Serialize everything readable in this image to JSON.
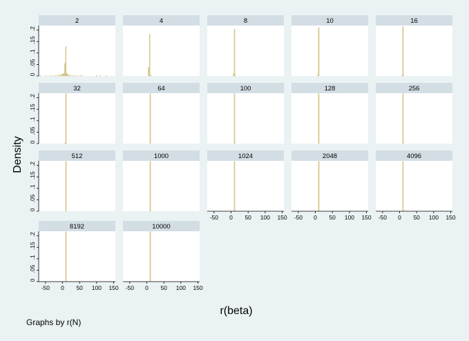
{
  "figure": {
    "ylabel": "Density",
    "xlabel": "r(beta)",
    "note": "Graphs by r(N)"
  },
  "colors": {
    "background": "#eaf2f3",
    "panel": "#ffffff",
    "strip": "#d3dee4",
    "bar": "#d8c98e",
    "bar_edge": "#c9b874",
    "axis": "#000000"
  },
  "chart_data": {
    "type": "bar",
    "subtype": "histogram-by-group",
    "xlabel": "r(beta)",
    "ylabel": "Density",
    "xlim": [
      -70,
      155
    ],
    "ylim": [
      0,
      0.22
    ],
    "xticks": [
      -50,
      0,
      50,
      100,
      150
    ],
    "xtick_labels": [
      "-50",
      "0",
      "50",
      "100",
      "150"
    ],
    "yticks": [
      0,
      0.05,
      0.1,
      0.15,
      0.2
    ],
    "ytick_labels": [
      "0",
      ".05",
      ".1",
      ".15",
      ".2"
    ],
    "grid": false,
    "bin_width": 2.3,
    "group_label": "Graphs by r(N)",
    "panels": [
      {
        "title": "2",
        "bins": [
          {
            "x": -66,
            "y": 0.002
          },
          {
            "x": -48,
            "y": 0.002
          },
          {
            "x": -36,
            "y": 0.002
          },
          {
            "x": -28,
            "y": 0.003
          },
          {
            "x": -20,
            "y": 0.003
          },
          {
            "x": -14,
            "y": 0.004
          },
          {
            "x": -9,
            "y": 0.004
          },
          {
            "x": -5,
            "y": 0.005
          },
          {
            "x": -2,
            "y": 0.007
          },
          {
            "x": 1,
            "y": 0.009
          },
          {
            "x": 4,
            "y": 0.012
          },
          {
            "x": 7,
            "y": 0.055
          },
          {
            "x": 9.5,
            "y": 0.128
          },
          {
            "x": 12,
            "y": 0.012
          },
          {
            "x": 15,
            "y": 0.008
          },
          {
            "x": 19,
            "y": 0.004
          },
          {
            "x": 24,
            "y": 0.003
          },
          {
            "x": 30,
            "y": 0.002
          },
          {
            "x": 36,
            "y": 0.002
          },
          {
            "x": 44,
            "y": 0.002
          },
          {
            "x": 52,
            "y": 0.002
          },
          {
            "x": 58,
            "y": 0.002
          },
          {
            "x": 100,
            "y": 0.002
          },
          {
            "x": 110,
            "y": 0.002
          },
          {
            "x": 128,
            "y": 0.002
          }
        ]
      },
      {
        "title": "4",
        "bins": [
          {
            "x": 5,
            "y": 0.038
          },
          {
            "x": 8.5,
            "y": 0.182
          },
          {
            "x": 11.5,
            "y": 0.004
          }
        ]
      },
      {
        "title": "8",
        "bins": [
          {
            "x": 7.5,
            "y": 0.012
          },
          {
            "x": 10,
            "y": 0.205
          },
          {
            "x": 12.5,
            "y": 0.002
          }
        ]
      },
      {
        "title": "10",
        "bins": [
          {
            "x": 7.5,
            "y": 0.006
          },
          {
            "x": 10,
            "y": 0.212
          }
        ]
      },
      {
        "title": "16",
        "bins": [
          {
            "x": 7.5,
            "y": 0.004
          },
          {
            "x": 10,
            "y": 0.216
          }
        ]
      },
      {
        "title": "32",
        "bins": [
          {
            "x": 7.5,
            "y": 0.002
          },
          {
            "x": 10,
            "y": 0.218
          }
        ]
      },
      {
        "title": "64",
        "bins": [
          {
            "x": 10,
            "y": 0.218
          }
        ]
      },
      {
        "title": "100",
        "bins": [
          {
            "x": 10,
            "y": 0.218
          }
        ]
      },
      {
        "title": "128",
        "bins": [
          {
            "x": 10,
            "y": 0.218
          }
        ]
      },
      {
        "title": "256",
        "bins": [
          {
            "x": 10,
            "y": 0.218
          }
        ]
      },
      {
        "title": "512",
        "bins": [
          {
            "x": 10,
            "y": 0.218
          }
        ]
      },
      {
        "title": "1000",
        "bins": [
          {
            "x": 10,
            "y": 0.218
          }
        ]
      },
      {
        "title": "1024",
        "bins": [
          {
            "x": 10,
            "y": 0.218
          }
        ]
      },
      {
        "title": "2048",
        "bins": [
          {
            "x": 10,
            "y": 0.218
          }
        ]
      },
      {
        "title": "4096",
        "bins": [
          {
            "x": 10,
            "y": 0.218
          }
        ]
      },
      {
        "title": "8192",
        "bins": [
          {
            "x": 10,
            "y": 0.218
          }
        ]
      },
      {
        "title": "10000",
        "bins": [
          {
            "x": 10,
            "y": 0.218
          }
        ]
      }
    ]
  }
}
